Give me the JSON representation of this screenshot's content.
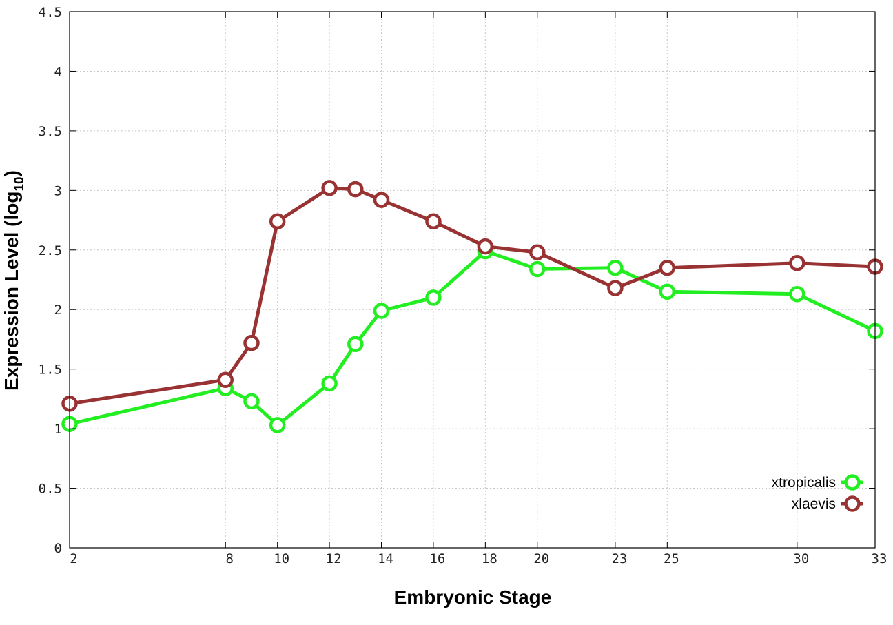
{
  "chart_data": {
    "type": "line",
    "xlabel": "Embryonic Stage",
    "ylabel_main": "Expression Level (log",
    "ylabel_sub": "10",
    "ylabel_close": ")",
    "x_ticks": [
      2,
      8,
      10,
      12,
      14,
      16,
      18,
      20,
      23,
      25,
      30,
      33
    ],
    "x_tick_labels": [
      "2",
      "8",
      "10",
      "12",
      "14",
      "16",
      "18",
      "20",
      "23",
      "25",
      "30",
      "33"
    ],
    "xlim": [
      2,
      33
    ],
    "y_ticks": [
      0,
      0.5,
      1,
      1.5,
      2,
      2.5,
      3,
      3.5,
      4,
      4.5
    ],
    "y_tick_labels": [
      "0",
      "0.5",
      "1",
      "1.5",
      "2",
      "2.5",
      "3",
      "3.5",
      "4",
      "4.5"
    ],
    "ylim": [
      0,
      4.5
    ],
    "grid": true,
    "legend_position": "bottom-right",
    "series": [
      {
        "name": "xtropicalis",
        "color": "#22ee22",
        "x": [
          2,
          8,
          9,
          10,
          12,
          13,
          14,
          16,
          18,
          20,
          23,
          25,
          30,
          33
        ],
        "values": [
          1.04,
          1.34,
          1.23,
          1.03,
          1.38,
          1.71,
          1.99,
          2.1,
          2.49,
          2.34,
          2.35,
          2.15,
          2.13,
          1.82
        ]
      },
      {
        "name": "xlaevis",
        "color": "#993333",
        "x": [
          2,
          8,
          9,
          10,
          12,
          13,
          14,
          16,
          18,
          20,
          23,
          25,
          30,
          33
        ],
        "values": [
          1.21,
          1.41,
          1.72,
          2.74,
          3.02,
          3.01,
          2.92,
          2.74,
          2.53,
          2.48,
          2.18,
          2.35,
          2.39,
          2.36
        ]
      }
    ]
  }
}
